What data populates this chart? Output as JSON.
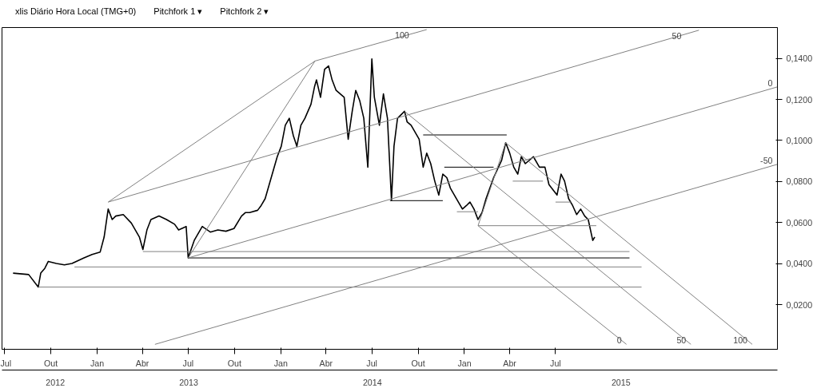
{
  "chart_data": {
    "type": "line",
    "title": "xlis Diário Hora Local (TMG+0)",
    "annotations": [
      "Pitchfork 1 ▾",
      "Pitchfork 2 ▾"
    ],
    "xlim": [
      "2012-06-26",
      "2016-09-14"
    ],
    "ylim": [
      -0.0017,
      0.155
    ],
    "xticks": [
      {
        "value": "2012-07",
        "label": "Jul"
      },
      {
        "value": "2012-10",
        "label": "Out"
      },
      {
        "value": "2013-01",
        "label": "Jan"
      },
      {
        "value": "2013-04",
        "label": "Abr"
      },
      {
        "value": "2013-07",
        "label": "Jul"
      },
      {
        "value": "2013-10",
        "label": "Out"
      },
      {
        "value": "2014-01",
        "label": "Jan"
      },
      {
        "value": "2014-04",
        "label": "Abr"
      },
      {
        "value": "2014-07",
        "label": "Jul"
      },
      {
        "value": "2014-10",
        "label": "Out"
      },
      {
        "value": "2015-01",
        "label": "Jan"
      },
      {
        "value": "2015-04",
        "label": "Abr"
      },
      {
        "value": "2015-07",
        "label": "Jul"
      }
    ],
    "x2lim": [
      "2012-06-26",
      "2016-09-14"
    ],
    "x2ticks": [
      {
        "value": "2012-10-10",
        "label": "2012"
      },
      {
        "value": "2013-07-02",
        "label": "2013"
      },
      {
        "value": "2014-07-02",
        "label": "2014"
      },
      {
        "value": "2015-11-08",
        "label": "2015"
      }
    ],
    "yticks": [
      {
        "value": 0.02,
        "label": "0,0200"
      },
      {
        "value": 0.04,
        "label": "0,0400"
      },
      {
        "value": 0.06,
        "label": "0,0600"
      },
      {
        "value": 0.08,
        "label": "0,0800"
      },
      {
        "value": 0.1,
        "label": "0,1000"
      },
      {
        "value": 0.12,
        "label": "0,1200"
      },
      {
        "value": 0.14,
        "label": "0,1400"
      }
    ],
    "grid": false,
    "series": [
      {
        "color": "#000000",
        "x": [
          "2012-07-18",
          "2012-08-18",
          "2012-09-06",
          "2012-09-11",
          "2012-09-19",
          "2012-09-26",
          "2012-10-12",
          "2012-10-28",
          "2012-11-12",
          "2012-12-06",
          "2012-12-22",
          "2013-01-07",
          "2013-01-15",
          "2013-01-23",
          "2013-01-31",
          "2013-02-07",
          "2013-02-22",
          "2013-03-10",
          "2013-03-26",
          "2013-04-02",
          "2013-04-10",
          "2013-04-18",
          "2013-05-04",
          "2013-05-19",
          "2013-06-04",
          "2013-06-12",
          "2013-06-27",
          "2013-07-01",
          "2013-07-13",
          "2013-07-29",
          "2013-08-14",
          "2013-08-29",
          "2013-09-14",
          "2013-09-30",
          "2013-10-15",
          "2013-10-23",
          "2013-10-31",
          "2013-11-16",
          "2013-11-23",
          "2013-12-01",
          "2013-12-09",
          "2013-12-17",
          "2013-12-25",
          "2014-01-02",
          "2014-01-10",
          "2014-01-18",
          "2014-01-26",
          "2014-02-02",
          "2014-02-10",
          "2014-02-18",
          "2014-03-02",
          "2014-03-09",
          "2014-03-13",
          "2014-03-21",
          "2014-03-29",
          "2014-04-06",
          "2014-04-13",
          "2014-04-21",
          "2014-05-07",
          "2014-05-15",
          "2014-05-23",
          "2014-05-30",
          "2014-06-07",
          "2014-06-15",
          "2014-06-23",
          "2014-07-01",
          "2014-07-06",
          "2014-07-16",
          "2014-07-24",
          "2014-08-01",
          "2014-08-09",
          "2014-08-14",
          "2014-08-21",
          "2014-09-04",
          "2014-09-09",
          "2014-09-17",
          "2014-09-25",
          "2014-10-03",
          "2014-10-11",
          "2014-10-18",
          "2014-10-26",
          "2014-11-03",
          "2014-11-11",
          "2014-11-19",
          "2014-11-27",
          "2014-12-04",
          "2014-12-20",
          "2014-12-28",
          "2015-01-05",
          "2015-01-12",
          "2015-01-20",
          "2015-01-28",
          "2015-02-05",
          "2015-02-13",
          "2015-02-28",
          "2015-03-16",
          "2015-03-24",
          "2015-04-01",
          "2015-04-09",
          "2015-04-17",
          "2015-04-24",
          "2015-05-02",
          "2015-05-10",
          "2015-05-18",
          "2015-05-30",
          "2015-06-10",
          "2015-06-18",
          "2015-07-04",
          "2015-07-12",
          "2015-07-19",
          "2015-07-27",
          "2015-08-04",
          "2015-08-12",
          "2015-08-20",
          "2015-08-28",
          "2015-09-04",
          "2015-09-13",
          "2015-09-17"
        ],
        "values": [
          0.0354,
          0.0347,
          0.0286,
          0.0354,
          0.0377,
          0.0411,
          0.0401,
          0.0394,
          0.0401,
          0.0428,
          0.0445,
          0.0456,
          0.053,
          0.0666,
          0.0615,
          0.0632,
          0.0639,
          0.0598,
          0.053,
          0.0469,
          0.0564,
          0.0615,
          0.0632,
          0.0615,
          0.0592,
          0.0564,
          0.0581,
          0.0428,
          0.0513,
          0.0581,
          0.0554,
          0.0564,
          0.0558,
          0.0571,
          0.0632,
          0.0649,
          0.0649,
          0.066,
          0.0683,
          0.0717,
          0.0785,
          0.0853,
          0.0921,
          0.0972,
          0.1074,
          0.1108,
          0.1023,
          0.0972,
          0.1074,
          0.1108,
          0.1176,
          0.1261,
          0.1295,
          0.121,
          0.1346,
          0.1363,
          0.1295,
          0.1244,
          0.121,
          0.1006,
          0.1142,
          0.1244,
          0.1193,
          0.1108,
          0.087,
          0.1397,
          0.121,
          0.1074,
          0.1227,
          0.1108,
          0.0707,
          0.0972,
          0.1108,
          0.1142,
          0.1091,
          0.1074,
          0.104,
          0.1006,
          0.087,
          0.0938,
          0.0887,
          0.0802,
          0.0734,
          0.0836,
          0.0819,
          0.0768,
          0.07,
          0.0666,
          0.0683,
          0.07,
          0.0666,
          0.0615,
          0.0649,
          0.0717,
          0.0819,
          0.0904,
          0.0989,
          0.0938,
          0.087,
          0.0836,
          0.0921,
          0.0887,
          0.0904,
          0.0921,
          0.087,
          0.087,
          0.0785,
          0.0734,
          0.0836,
          0.0802,
          0.0717,
          0.0683,
          0.0639,
          0.0666,
          0.0632,
          0.0615,
          0.0513,
          0.053
        ]
      },
      {
        "color": "#808080",
        "x": [
          "2012-09-06",
          "2015-12-19"
        ],
        "values": [
          0.0286,
          0.0286
        ]
      },
      {
        "color": "#808080",
        "x": [
          "2012-11-17",
          "2015-12-19"
        ],
        "values": [
          0.0384,
          0.0384
        ]
      },
      {
        "color": "#808080",
        "x": [
          "2013-04-02",
          "2015-11-25"
        ],
        "values": [
          0.0459,
          0.0459
        ]
      },
      {
        "color": "#000000",
        "x": [
          "2013-07-01",
          "2015-11-25"
        ],
        "values": [
          0.0428,
          0.0428
        ]
      },
      {
        "color": "#000000",
        "x": [
          "2014-08-06",
          "2014-11-19"
        ],
        "values": [
          0.0707,
          0.0707
        ]
      },
      {
        "color": "#000000",
        "x": [
          "2014-10-11",
          "2015-03-26"
        ],
        "values": [
          0.1027,
          0.1027
        ]
      },
      {
        "color": "#000000",
        "x": [
          "2014-11-22",
          "2015-02-28"
        ],
        "values": [
          0.087,
          0.087
        ]
      },
      {
        "color": "#808080",
        "x": [
          "2015-01-28",
          "2015-09-20"
        ],
        "values": [
          0.0585,
          0.0585
        ]
      },
      {
        "color": "#808080",
        "x": [
          "2014-12-17",
          "2015-01-28"
        ],
        "values": [
          0.0653,
          0.0653
        ]
      },
      {
        "color": "#808080",
        "x": [
          "2015-04-07",
          "2015-06-06"
        ],
        "values": [
          0.0802,
          0.0802
        ]
      },
      {
        "color": "#808080",
        "x": [
          "2015-07-01",
          "2015-08-01"
        ],
        "values": [
          0.07,
          0.07
        ]
      },
      {
        "name": "100",
        "color": "#808080",
        "x": [
          "2013-01-23",
          "2014-03-10",
          "2014-10-18"
        ],
        "values": [
          0.07,
          0.1387,
          0.154
        ]
      },
      {
        "name": "50",
        "color": "#808080",
        "x": [
          "2013-01-23",
          "2016-04-11"
        ],
        "values": [
          0.07,
          0.1537
        ]
      },
      {
        "color": "#808080",
        "x": [
          "2013-07-01",
          "2014-03-10"
        ],
        "values": [
          0.0428,
          0.1387
        ]
      },
      {
        "name": "0",
        "color": "#808080",
        "x": [
          "2013-07-01",
          "2016-09-14"
        ],
        "values": [
          0.0428,
          0.1261
        ]
      },
      {
        "name": "-50",
        "color": "#808080",
        "x": [
          "2013-04-26",
          "2016-09-14"
        ],
        "values": [
          0.0007,
          0.0884
        ]
      },
      {
        "name": "50",
        "color": "#808080",
        "x": [
          "2014-09-04",
          "2016-03-26"
        ],
        "values": [
          0.1142,
          0.0007
        ]
      },
      {
        "name": "100",
        "color": "#808080",
        "x": [
          "2015-03-24",
          "2016-07-26"
        ],
        "values": [
          0.0989,
          0.0007
        ]
      },
      {
        "name": "0",
        "color": "#808080",
        "x": [
          "2015-01-28",
          "2015-11-19"
        ],
        "values": [
          0.0585,
          0.0007
        ]
      },
      {
        "color": "#808080",
        "x": [
          "2015-01-28",
          "2015-03-24"
        ],
        "values": [
          0.0585,
          0.0989
        ]
      }
    ]
  }
}
